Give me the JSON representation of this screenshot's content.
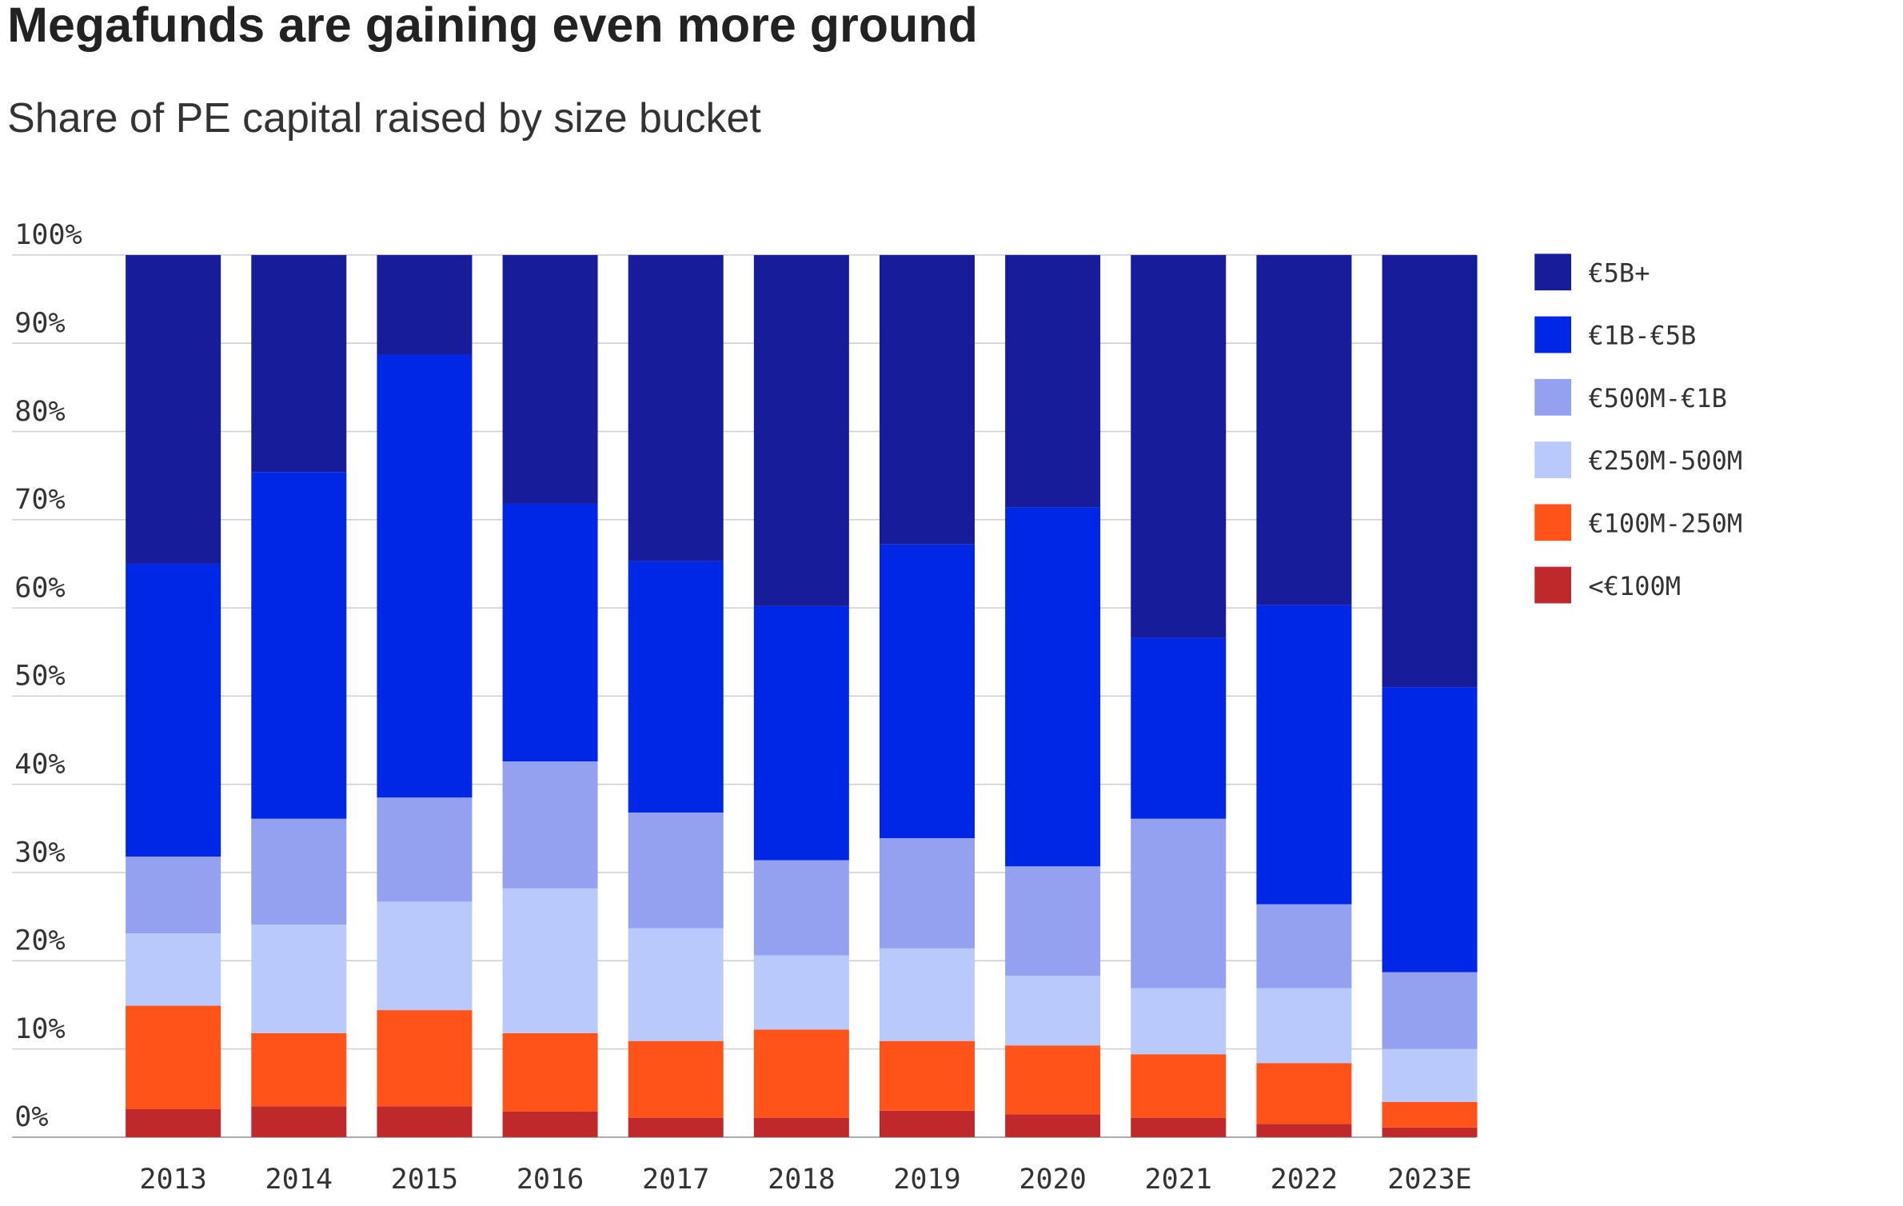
{
  "chart_data": {
    "type": "bar",
    "stacked": true,
    "title": "Megafunds are gaining even more ground",
    "subtitle": "Share of PE capital raised by size bucket",
    "xlabel": "",
    "ylabel": "",
    "ylim": [
      0,
      100
    ],
    "yticks": [
      "0%",
      "10%",
      "20%",
      "30%",
      "40%",
      "50%",
      "60%",
      "70%",
      "80%",
      "90%",
      "100%"
    ],
    "grid": true,
    "legend_position": "right",
    "categories": [
      "2013",
      "2014",
      "2015",
      "2016",
      "2017",
      "2018",
      "2019",
      "2020",
      "2021",
      "2022",
      "2023E"
    ],
    "series": [
      {
        "name": "<€100M",
        "color": "#c0292c",
        "values": [
          3.2,
          3.5,
          3.5,
          2.9,
          2.2,
          2.2,
          3.0,
          2.6,
          2.2,
          1.5,
          1.1
        ]
      },
      {
        "name": "€100M-250M",
        "color": "#ff531a",
        "values": [
          11.7,
          8.3,
          10.9,
          8.9,
          8.7,
          10.0,
          7.9,
          7.8,
          7.2,
          6.9,
          2.9
        ]
      },
      {
        "name": "€250M-500M",
        "color": "#b9c9fb",
        "values": [
          8.2,
          12.3,
          12.3,
          16.4,
          12.8,
          8.4,
          10.5,
          7.9,
          7.5,
          8.5,
          6.0
        ]
      },
      {
        "name": "€500M-€1B",
        "color": "#94a0f0",
        "values": [
          8.7,
          12.0,
          11.8,
          14.4,
          13.1,
          10.8,
          12.5,
          12.4,
          19.2,
          9.5,
          8.7
        ]
      },
      {
        "name": "€1B-€5B",
        "color": "#0026e6",
        "values": [
          33.2,
          39.3,
          50.2,
          29.2,
          28.5,
          28.8,
          33.3,
          40.7,
          20.5,
          33.9,
          32.3
        ]
      },
      {
        "name": "€5B+",
        "color": "#171c9b",
        "values": [
          35.0,
          24.6,
          11.3,
          28.2,
          34.7,
          39.8,
          32.8,
          28.6,
          43.4,
          39.7,
          49.0
        ]
      }
    ]
  }
}
